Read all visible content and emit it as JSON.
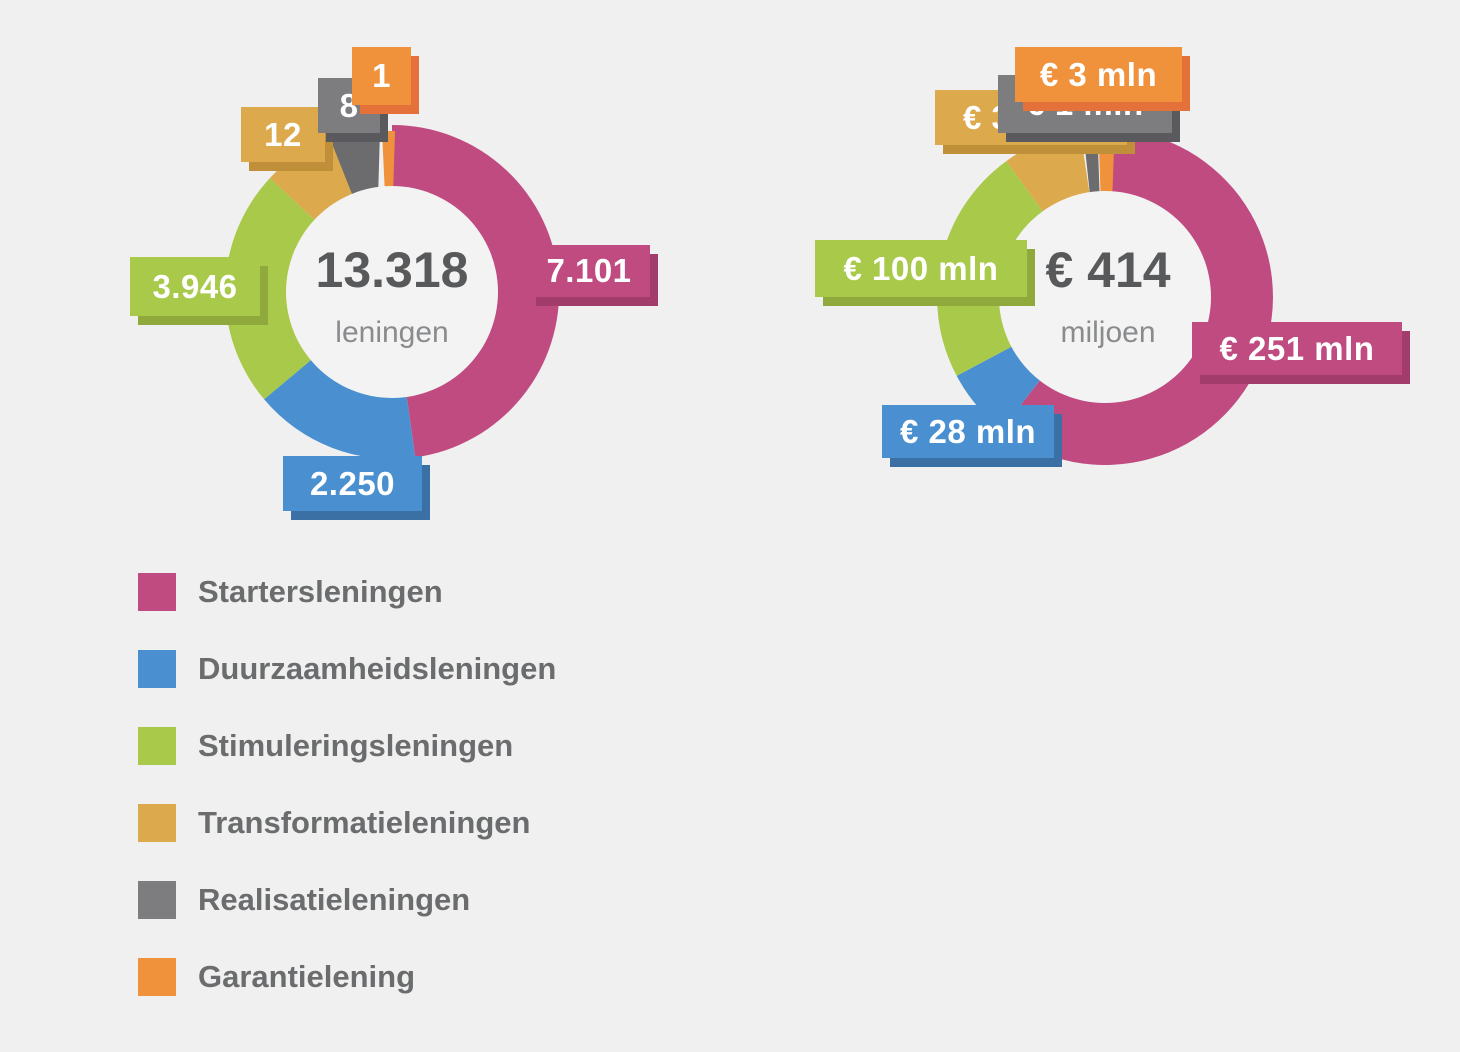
{
  "page": {
    "background_color": "#f0f0f0",
    "hole_color": "#f3f3f3"
  },
  "chart_data": [
    {
      "type": "pie",
      "subtype": "donut",
      "title": "13.318 leningen",
      "center_value": "13.318",
      "center_caption": "leningen",
      "total": 13318,
      "categories": [
        "Startersleningen",
        "Duurzaamheidsleningen",
        "Stimuleringsleningen",
        "Transformatieleningen",
        "Realisatieleningen",
        "Garantielening"
      ],
      "values": [
        7101,
        2250,
        3946,
        12,
        8,
        1
      ],
      "labels": [
        "7.101",
        "2.250",
        "3.946",
        "12",
        "8",
        "1"
      ],
      "colors": [
        "#c04b80",
        "#4a90d0",
        "#a9c94b",
        "#dcaa4c",
        "#7d7d80",
        "#f0913c"
      ],
      "display_angles_deg": [
        [
          0,
          172
        ],
        [
          172,
          230
        ],
        [
          230,
          313
        ],
        [
          313,
          347.5
        ],
        [
          345,
          354
        ],
        [
          354.5,
          358.5
        ]
      ],
      "legend_position": "bottom-left"
    },
    {
      "type": "pie",
      "subtype": "donut",
      "title": "€ 414 miljoen",
      "center_value": "€ 414",
      "center_caption": "miljoen",
      "total": 414,
      "categories": [
        "Startersleningen",
        "Duurzaamheidsleningen",
        "Stimuleringsleningen",
        "Transformatieleningen",
        "Realisatieleningen",
        "Garantielening"
      ],
      "values": [
        251,
        28,
        100,
        31,
        1,
        3
      ],
      "labels": [
        "€ 251 mln",
        "€ 28 mln",
        "€ 100 mln",
        "€ 31 mln",
        "€ 1 mln",
        "€ 3 mln"
      ],
      "colors": [
        "#c04b80",
        "#4a90d0",
        "#a9c94b",
        "#dcaa4c",
        "#7d7d80",
        "#f0913c"
      ],
      "display_angles_deg": [
        [
          3,
          218
        ],
        [
          218,
          242
        ],
        [
          242,
          324
        ],
        [
          324,
          351.5
        ],
        [
          352,
          355
        ],
        [
          355.5,
          359.5
        ]
      ],
      "legend_position": "bottom-left"
    }
  ],
  "legend": {
    "items": [
      {
        "label": "Startersleningen",
        "color": "#c04b80"
      },
      {
        "label": "Duurzaamheidsleningen",
        "color": "#4a90d0"
      },
      {
        "label": "Stimuleringsleningen",
        "color": "#a9c94b"
      },
      {
        "label": "Transformatieleningen",
        "color": "#dcaa4c"
      },
      {
        "label": "Realisatieleningen",
        "color": "#7d7d80"
      },
      {
        "label": "Garantielening",
        "color": "#f0913c"
      }
    ]
  }
}
